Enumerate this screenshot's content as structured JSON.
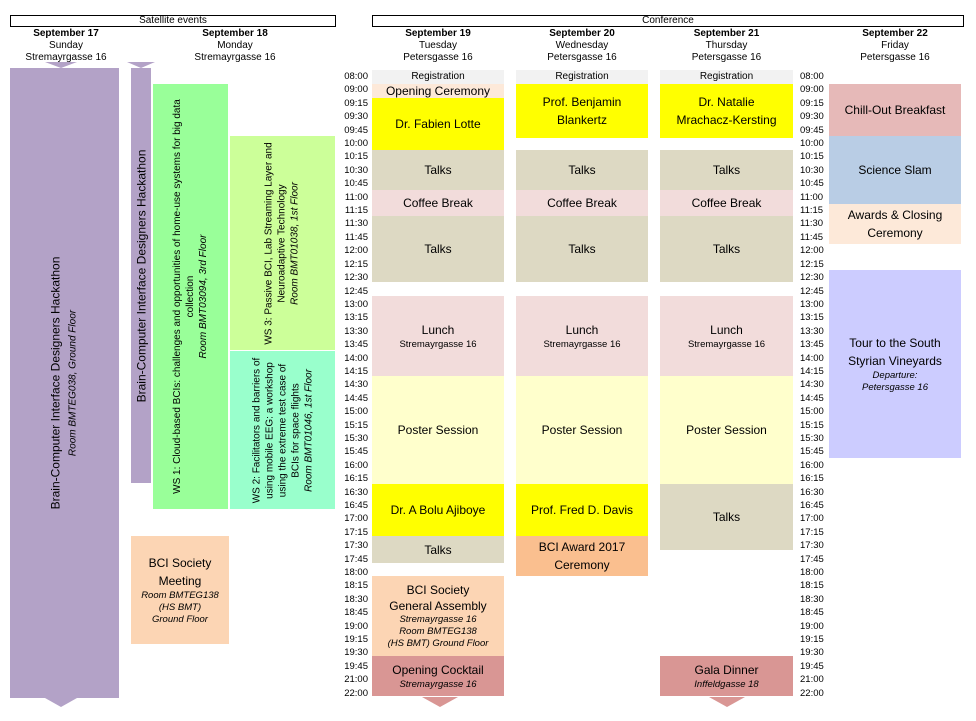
{
  "headers": {
    "satellite": "Satellite events",
    "conference": "Conference"
  },
  "days": {
    "sep17": {
      "date": "September 17",
      "weekday": "Sunday",
      "venue": "Stremayrgasse 16"
    },
    "sep18": {
      "date": "September 18",
      "weekday": "Monday",
      "venue": "Stremayrgasse 16"
    },
    "sep19": {
      "date": "September 19",
      "weekday": "Tuesday",
      "venue": "Petersgasse 16"
    },
    "sep20": {
      "date": "September 20",
      "weekday": "Wednesday",
      "venue": "Petersgasse 16"
    },
    "sep21": {
      "date": "September 21",
      "weekday": "Thursday",
      "venue": "Petersgasse 16"
    },
    "sep22": {
      "date": "September 22",
      "weekday": "Friday",
      "venue": "Petersgasse 16"
    }
  },
  "times": [
    "08:00",
    "09:00",
    "09:15",
    "09:30",
    "09:45",
    "10:00",
    "10:15",
    "10:30",
    "10:45",
    "11:00",
    "11:15",
    "11:30",
    "11:45",
    "12:00",
    "12:15",
    "12:30",
    "12:45",
    "13:00",
    "13:15",
    "13:30",
    "13:45",
    "14:00",
    "14:15",
    "14:30",
    "14:45",
    "15:00",
    "15:15",
    "15:30",
    "15:45",
    "16:00",
    "16:15",
    "16:30",
    "16:45",
    "17:00",
    "17:15",
    "17:30",
    "17:45",
    "18:00",
    "18:15",
    "18:30",
    "18:45",
    "19:00",
    "19:15",
    "19:30",
    "19:45",
    "21:00",
    "22:00"
  ],
  "satellite": {
    "hackathon17": {
      "title": "Brain-Computer Interface Designers Hackathon",
      "room": "Room BMTEG038, Ground Floor"
    },
    "hackathon18": {
      "title": "Brain-Computer Interface Designers Hackathon"
    },
    "ws1": {
      "title1": "WS 1: Cloud-based BCIs: challenges and opportunities of home-use systems for big data",
      "title2": "collection",
      "room": "Room BMT03094, 3rd Floor"
    },
    "ws3": {
      "title1": "WS 3: Passive BCI, Lab Streaming Layer and",
      "title2": "Neuroadaptive Technology",
      "room": "Room BMT01038, 1st Floor"
    },
    "ws2": {
      "title1": "WS 2: Facilitators and barriers of",
      "title2": "using mobile EEG: a workshop",
      "title3": "using the extreme test case of",
      "title4": "BCIs for space flights",
      "room": "Room BMT01046, 1st Floor"
    },
    "society_meeting": {
      "title1": "BCI Society",
      "title2": "Meeting",
      "room1": "Room BMTEG138",
      "room2": "(HS BMT)",
      "room3": "Ground Floor"
    }
  },
  "sep19_events": {
    "registration": "Registration",
    "opening": "Opening Ceremony",
    "keynote1": "Dr. Fabien Lotte",
    "talks1": "Talks",
    "coffee": "Coffee Break",
    "talks2": "Talks",
    "lunch": "Lunch",
    "lunch_loc": "Stremayrgasse 16",
    "poster": "Poster Session",
    "keynote2": "Dr. A Bolu Ajiboye",
    "talks3": "Talks",
    "assembly1": "BCI Society",
    "assembly2": "General Assembly",
    "assembly_loc1": "Stremayrgasse 16",
    "assembly_loc2": "Room BMTEG138",
    "assembly_loc3": "(HS BMT) Ground Floor",
    "cocktail": "Opening Cocktail",
    "cocktail_loc": "Stremayrgasse 16"
  },
  "sep20_events": {
    "registration": "Registration",
    "keynote1a": "Prof. Benjamin",
    "keynote1b": "Blankertz",
    "talks1": "Talks",
    "coffee": "Coffee Break",
    "talks2": "Talks",
    "lunch": "Lunch",
    "lunch_loc": "Stremayrgasse 16",
    "poster": "Poster Session",
    "keynote2": "Prof. Fred D. Davis",
    "award1": "BCI Award 2017",
    "award2": "Ceremony"
  },
  "sep21_events": {
    "registration": "Registration",
    "keynote1a": "Dr. Natalie",
    "keynote1b": "Mrachacz-Kersting",
    "talks1": "Talks",
    "coffee": "Coffee Break",
    "talks2": "Talks",
    "lunch": "Lunch",
    "lunch_loc": "Stremayrgasse 16",
    "poster": "Poster Session",
    "talks3": "Talks",
    "gala": "Gala Dinner",
    "gala_loc": "Inffeldgasse 18"
  },
  "sep22_events": {
    "breakfast": "Chill-Out Breakfast",
    "slam": "Science Slam",
    "awards1": "Awards & Closing",
    "awards2": "Ceremony",
    "tour1": "Tour to the South",
    "tour2": "Styrian Vineyards",
    "tour_dep1": "Departure:",
    "tour_dep2": "Petersgasse 16"
  },
  "colors": {
    "purple": "#b3a2c7",
    "green": "#99ff99",
    "lightgreen": "#ccff99",
    "aqua": "#99ffcc",
    "yellow": "#ffff00",
    "tan": "#ddd9c3",
    "pink": "#f2dcdb",
    "ivory": "#ffffcc",
    "peach": "#fcd5b4",
    "rose": "#d99694",
    "blue": "#b9cde5",
    "lavender": "#ccccff",
    "salmon": "#e6b9b8"
  }
}
